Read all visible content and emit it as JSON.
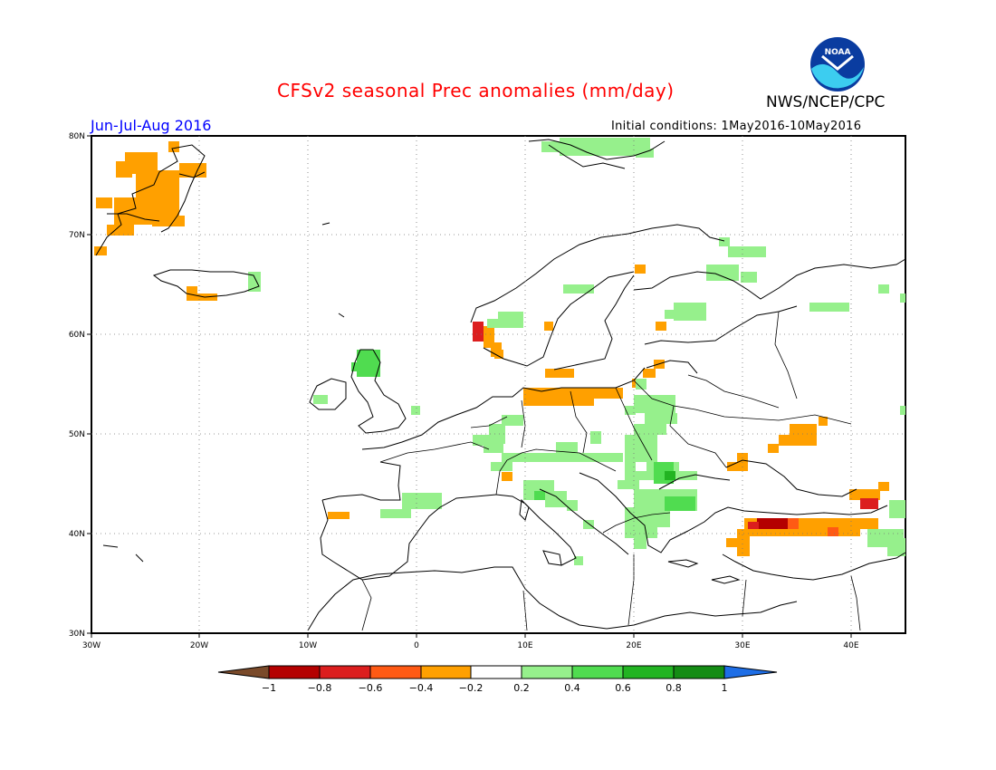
{
  "title": "CFSv2 seasonal Prec anomalies (mm/day)",
  "agency": "NWS/NCEP/CPC",
  "logo_text": "NOAA",
  "season": "Jun-Jul-Aug 2016",
  "initial_conditions": "Initial conditions: 1May2016-10May2016",
  "lat_labels": [
    "80N",
    "70N",
    "60N",
    "50N",
    "40N",
    "30N"
  ],
  "lon_labels": [
    "30W",
    "20W",
    "10W",
    "0",
    "10E",
    "20E",
    "30E",
    "40E"
  ],
  "colorbar": {
    "tick_labels": [
      "-1",
      "-0.8",
      "-0.6",
      "-0.4",
      "-0.2",
      "0.2",
      "0.4",
      "0.6",
      "0.8",
      "1"
    ],
    "colors": [
      "#7a4a2a",
      "#b40000",
      "#dc1e1e",
      "#ff5a14",
      "#ffa000",
      "#ffffff",
      "#96f08c",
      "#50dc50",
      "#22b422",
      "#148c14",
      "#1e6ee6"
    ]
  },
  "anomaly_regions": [
    {
      "region": "Greenland east coast",
      "class": "-0.4"
    },
    {
      "region": "Iceland south",
      "class": "-0.4"
    },
    {
      "region": "Norway west coast",
      "class": "-0.8"
    },
    {
      "region": "Southern Scandinavia / Baltic coast",
      "class": "-0.4"
    },
    {
      "region": "Northern Germany / Poland coast",
      "class": "-0.4"
    },
    {
      "region": "Southern Ukraine / Russia",
      "class": "-0.4"
    },
    {
      "region": "Turkey north",
      "class": "-0.8"
    },
    {
      "region": "Caucasus",
      "class": "-0.6"
    },
    {
      "region": "Svalbard",
      "class": "0.2"
    },
    {
      "region": "Scotland",
      "class": "0.4"
    },
    {
      "region": "Central Europe / Alps",
      "class": "0.2"
    },
    {
      "region": "Balkans / Romania",
      "class": "0.6"
    },
    {
      "region": "Northwest Russia",
      "class": "0.2"
    },
    {
      "region": "Spain north",
      "class": "0.2"
    }
  ]
}
